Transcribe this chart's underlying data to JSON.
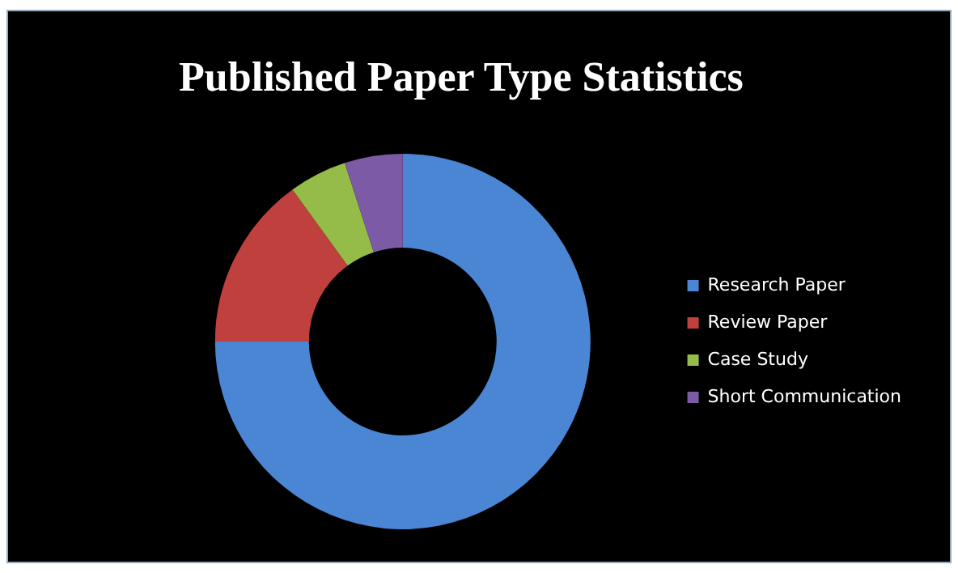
{
  "chart_data": {
    "type": "donut",
    "title": "Published Paper Type Statistics",
    "categories": [
      "Research Paper",
      "Review Paper",
      "Case Study",
      "Short Communication"
    ],
    "values": [
      75,
      15,
      5,
      5
    ],
    "colors": [
      "#4a86d4",
      "#c0403e",
      "#95bb48",
      "#7c5aa6"
    ],
    "legend": "right"
  }
}
